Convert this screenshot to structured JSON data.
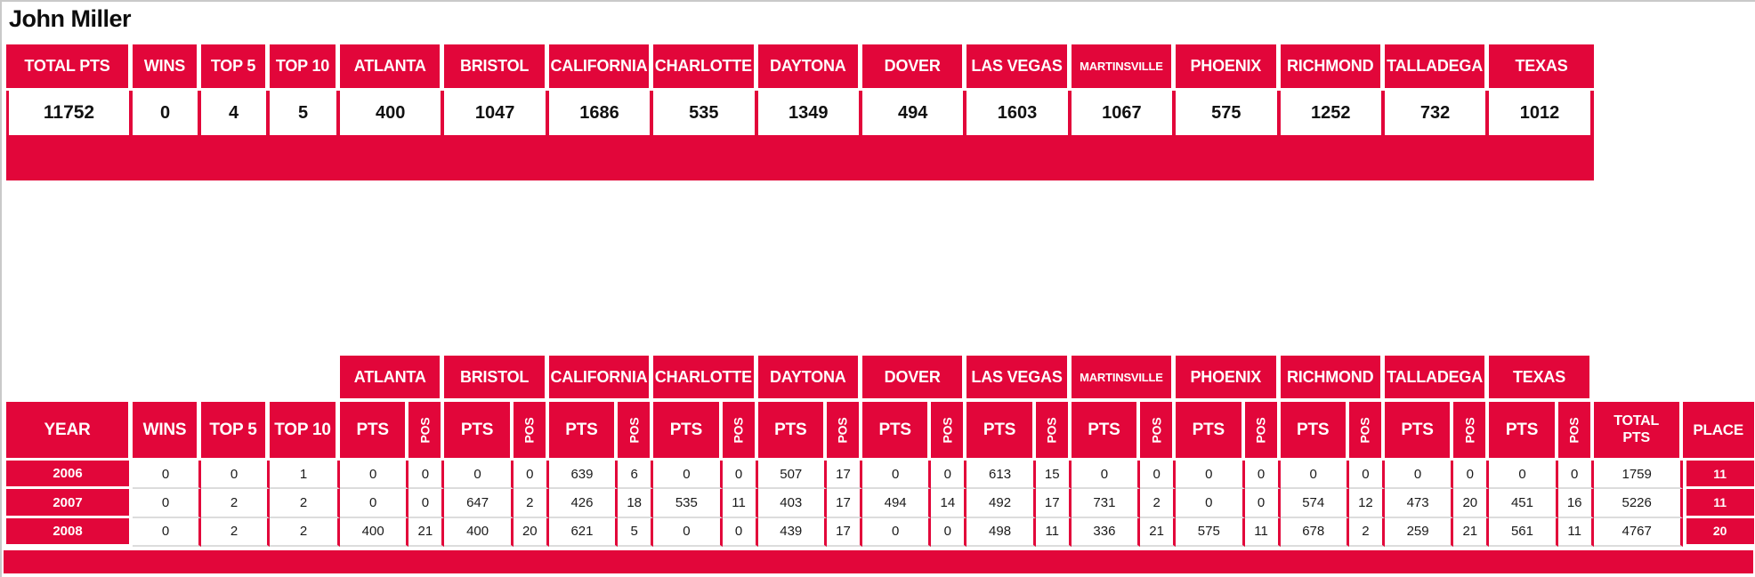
{
  "title": "John Miller",
  "colors": {
    "accent_red": "#e2063a",
    "row_separator": "#dcdcdc",
    "page_border": "#c9c9c9"
  },
  "tracks": [
    "ATLANTA",
    "BRISTOL",
    "CALIFORNIA",
    "CHARLOTTE",
    "DAYTONA",
    "DOVER",
    "LAS VEGAS",
    "MARTINSVILLE",
    "PHOENIX",
    "RICHMOND",
    "TALLADEGA",
    "TEXAS"
  ],
  "summary": {
    "headers": [
      "TOTAL PTS",
      "WINS",
      "TOP 5",
      "TOP 10",
      "ATLANTA",
      "BRISTOL",
      "CALIFORNIA",
      "CHARLOTTE",
      "DAYTONA",
      "DOVER",
      "LAS VEGAS",
      "MARTINSVILLE",
      "PHOENIX",
      "RICHMOND",
      "TALLADEGA",
      "TEXAS"
    ],
    "values": [
      "11752",
      "0",
      "4",
      "5",
      "400",
      "1047",
      "1686",
      "535",
      "1349",
      "494",
      "1603",
      "1067",
      "575",
      "1252",
      "732",
      "1012"
    ]
  },
  "seasons": {
    "col_headers": {
      "year": "YEAR",
      "wins": "WINS",
      "top5": "TOP 5",
      "top10": "TOP 10",
      "pts": "PTS",
      "pos": "POS",
      "total_pts": "TOTAL PTS",
      "place": "PLACE"
    },
    "rows": [
      {
        "year": "2006",
        "wins": "0",
        "top5": "0",
        "top10": "1",
        "track_results": [
          [
            "0",
            "0"
          ],
          [
            "0",
            "0"
          ],
          [
            "639",
            "6"
          ],
          [
            "0",
            "0"
          ],
          [
            "507",
            "17"
          ],
          [
            "0",
            "0"
          ],
          [
            "613",
            "15"
          ],
          [
            "0",
            "0"
          ],
          [
            "0",
            "0"
          ],
          [
            "0",
            "0"
          ],
          [
            "0",
            "0"
          ],
          [
            "0",
            "0"
          ]
        ],
        "total_pts": "1759",
        "place": "11"
      },
      {
        "year": "2007",
        "wins": "0",
        "top5": "2",
        "top10": "2",
        "track_results": [
          [
            "0",
            "0"
          ],
          [
            "647",
            "2"
          ],
          [
            "426",
            "18"
          ],
          [
            "535",
            "11"
          ],
          [
            "403",
            "17"
          ],
          [
            "494",
            "14"
          ],
          [
            "492",
            "17"
          ],
          [
            "731",
            "2"
          ],
          [
            "0",
            "0"
          ],
          [
            "574",
            "12"
          ],
          [
            "473",
            "20"
          ],
          [
            "451",
            "16"
          ]
        ],
        "total_pts": "5226",
        "place": "11"
      },
      {
        "year": "2008",
        "wins": "0",
        "top5": "2",
        "top10": "2",
        "track_results": [
          [
            "400",
            "21"
          ],
          [
            "400",
            "20"
          ],
          [
            "621",
            "5"
          ],
          [
            "0",
            "0"
          ],
          [
            "439",
            "17"
          ],
          [
            "0",
            "0"
          ],
          [
            "498",
            "11"
          ],
          [
            "336",
            "21"
          ],
          [
            "575",
            "11"
          ],
          [
            "678",
            "2"
          ],
          [
            "259",
            "21"
          ],
          [
            "561",
            "11"
          ]
        ],
        "total_pts": "4767",
        "place": "20"
      }
    ]
  }
}
